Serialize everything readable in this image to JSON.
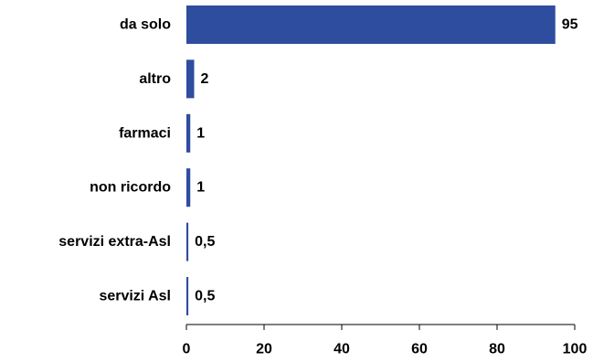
{
  "chart_data": {
    "type": "bar",
    "orientation": "horizontal",
    "categories": [
      "da solo",
      "altro",
      "farmaci",
      "non ricordo",
      "servizi extra-Asl",
      "servizi Asl"
    ],
    "values": [
      95,
      2,
      1,
      1,
      0.5,
      0.5
    ],
    "value_labels": [
      "95",
      "2",
      "1",
      "1",
      "0,5",
      "0,5"
    ],
    "xlim": [
      0,
      100
    ],
    "x_ticks": [
      0,
      20,
      40,
      60,
      80,
      100
    ],
    "x_tick_labels": [
      "0",
      "20",
      "40",
      "60",
      "80",
      "100"
    ],
    "grid": false,
    "legend": "none",
    "bar_color": "#2E4D9E"
  }
}
